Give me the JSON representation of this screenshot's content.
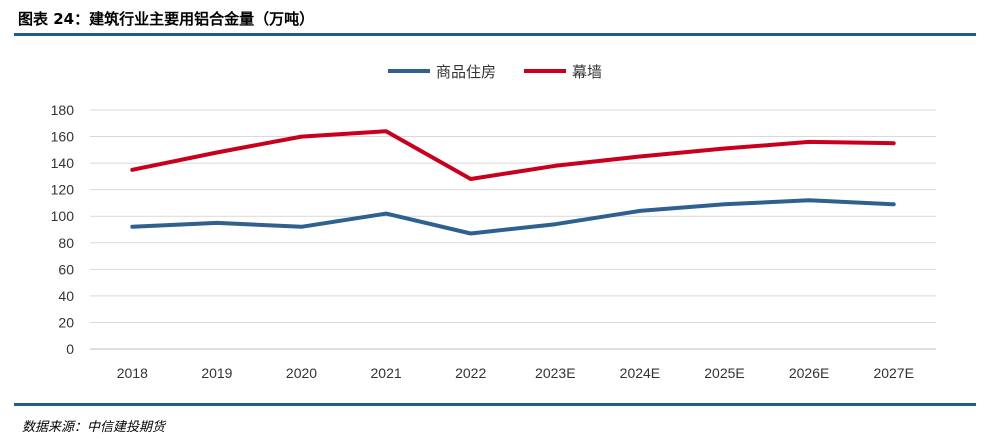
{
  "header": {
    "title": "图表 24：建筑行业主要用铝合金量（万吨）"
  },
  "footer": {
    "source": "数据来源：中信建投期货"
  },
  "chart_data": {
    "type": "line",
    "title": "图表 24：建筑行业主要用铝合金量（万吨）",
    "categories": [
      "2018",
      "2019",
      "2020",
      "2021",
      "2022",
      "2023E",
      "2024E",
      "2025E",
      "2026E",
      "2027E"
    ],
    "series": [
      {
        "name": "商品住房",
        "color": "#2e6090",
        "values": [
          92,
          95,
          92,
          102,
          87,
          94,
          104,
          109,
          112,
          109
        ]
      },
      {
        "name": "幕墙",
        "color": "#c8001e",
        "values": [
          135,
          148,
          160,
          164,
          128,
          138,
          145,
          151,
          156,
          155
        ]
      }
    ],
    "ylim": [
      0,
      180
    ],
    "yticks": [
      0,
      20,
      40,
      60,
      80,
      100,
      120,
      140,
      160,
      180
    ],
    "grid": true,
    "legend": "top-center"
  }
}
